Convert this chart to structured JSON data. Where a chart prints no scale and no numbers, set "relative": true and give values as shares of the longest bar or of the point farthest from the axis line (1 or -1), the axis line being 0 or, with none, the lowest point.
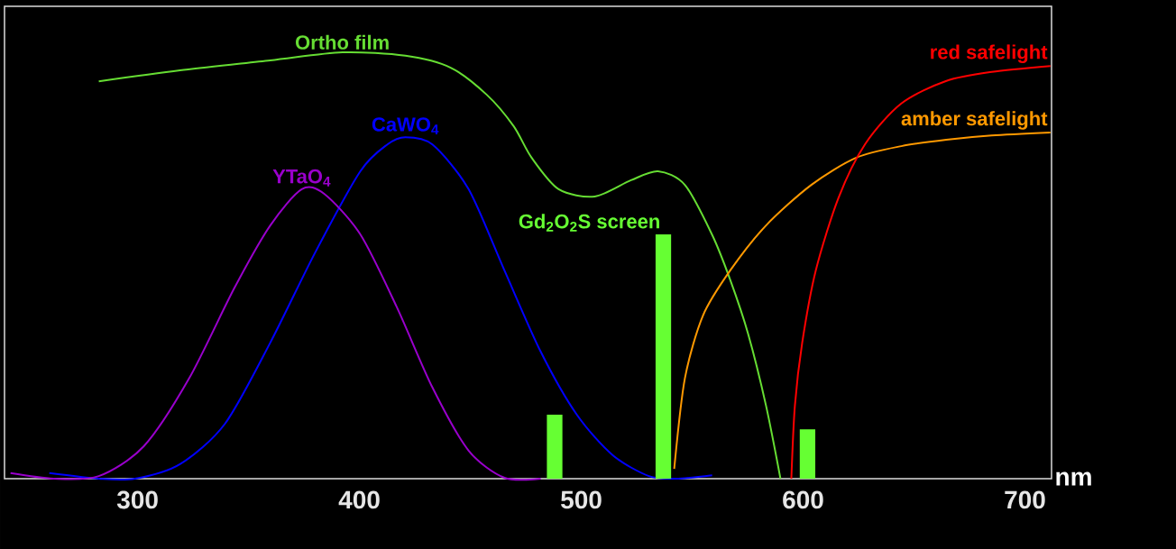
{
  "chart_data": {
    "type": "line",
    "relative": true,
    "xlabel": "nm",
    "xlim": [
      240,
      712
    ],
    "xticks": [
      300,
      400,
      500,
      600,
      700
    ],
    "series": [
      {
        "name": "Ortho film",
        "color": "#66dd33",
        "x": [
          282.5,
          319.1,
          359.8,
          392.3,
          420.7,
          441.1,
          457.3,
          469.5,
          477.6,
          489.8,
          506.1,
          522.4,
          534.6,
          546.7,
          558.9,
          567.1,
          575.2,
          583.3,
          589.8
        ],
        "values": [
          0.932,
          0.958,
          0.981,
          1,
          0.992,
          0.964,
          0.901,
          0.827,
          0.753,
          0.679,
          0.662,
          0.7,
          0.721,
          0.689,
          0.573,
          0.467,
          0.34,
          0.171,
          0
        ]
      },
      {
        "name": "CaWO$_{4}$",
        "color": "#0000ff",
        "x": [
          260.2,
          282.5,
          298.8,
          319.1,
          339.4,
          359.8,
          380.1,
          400.4,
          412.6,
          420.7,
          432.9,
          449.2,
          465.4,
          481.7,
          498.0,
          514.2,
          530.5,
          542.7,
          559.0
        ],
        "values": [
          0.013,
          0,
          0,
          0.034,
          0.129,
          0.319,
          0.531,
          0.721,
          0.784,
          0.801,
          0.784,
          0.679,
          0.488,
          0.298,
          0.15,
          0.055,
          0.006,
          0,
          0.008
        ]
      },
      {
        "name": "YTaO$_{4}$",
        "color": "#9900cc",
        "x": [
          242.7,
          262.2,
          282.5,
          302.8,
          323.2,
          343.5,
          359.8,
          374.0,
          384.1,
          400.4,
          416.7,
          432.9,
          449.2,
          465.4,
          481.7
        ],
        "values": [
          0.013,
          0,
          0.006,
          0.076,
          0.235,
          0.446,
          0.594,
          0.679,
          0.668,
          0.573,
          0.404,
          0.214,
          0.066,
          0.002,
          0
        ]
      },
      {
        "name": "amber safelight",
        "color": "#ff9900",
        "x": [
          541.9,
          546.7,
          554.9,
          567.1,
          583.3,
          603.7,
          624.0,
          644.3,
          664.6,
          685.0,
          711.5
        ],
        "values": [
          0.023,
          0.235,
          0.383,
          0.488,
          0.594,
          0.689,
          0.753,
          0.78,
          0.795,
          0.805,
          0.812
        ]
      },
      {
        "name": "red safelight",
        "color": "#ff0000",
        "x": [
          594.7,
          596.3,
          599.6,
          605.7,
          615.9,
          628.0,
          644.3,
          664.6,
          685.0,
          711.5
        ],
        "values": [
          0,
          0.171,
          0.319,
          0.488,
          0.658,
          0.785,
          0.88,
          0.933,
          0.954,
          0.968
        ]
      },
      {
        "name": "Gd$_{2}$O$_{2}$S screen",
        "type": "bar",
        "color": "#66ff33",
        "x": [
          488,
          537,
          602
        ],
        "values": [
          0.15,
          0.573,
          0.116
        ]
      }
    ]
  }
}
